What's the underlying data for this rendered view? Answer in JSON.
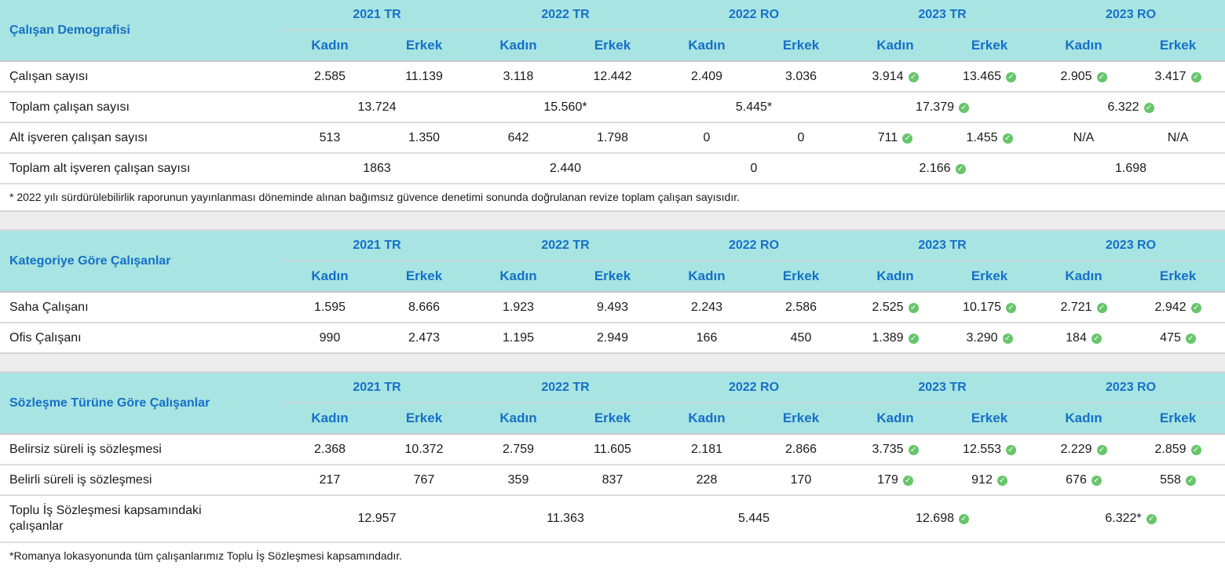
{
  "years": [
    "2021 TR",
    "2022 TR",
    "2022 RO",
    "2023 TR",
    "2023 RO"
  ],
  "genders": [
    "Kadın",
    "Erkek"
  ],
  "colors": {
    "header_bg": "#a8e4e1",
    "header_text": "#1570c8",
    "check": "#67c56a"
  },
  "check_icon": "check-circle-icon",
  "section1": {
    "title": "Çalışan Demografisi",
    "rows": [
      {
        "label": "Çalışan sayısı",
        "cells": [
          {
            "v": "2.585"
          },
          {
            "v": "11.139"
          },
          {
            "v": "3.118"
          },
          {
            "v": "12.442"
          },
          {
            "v": "2.409"
          },
          {
            "v": "3.036"
          },
          {
            "v": "3.914",
            "check": true
          },
          {
            "v": "13.465",
            "check": true
          },
          {
            "v": "2.905",
            "check": true
          },
          {
            "v": "3.417",
            "check": true
          }
        ]
      },
      {
        "label": "Toplam çalışan sayısı",
        "cells": [
          {
            "v": "13.724",
            "span": 2
          },
          {
            "v": "15.560*",
            "span": 2
          },
          {
            "v": "5.445*",
            "span": 2
          },
          {
            "v": "17.379",
            "span": 2,
            "check": true
          },
          {
            "v": "6.322",
            "span": 2,
            "check": true
          }
        ]
      },
      {
        "label": "Alt işveren çalışan sayısı",
        "cells": [
          {
            "v": "513"
          },
          {
            "v": "1.350"
          },
          {
            "v": "642"
          },
          {
            "v": "1.798"
          },
          {
            "v": "0"
          },
          {
            "v": "0"
          },
          {
            "v": "711",
            "check": true
          },
          {
            "v": "1.455",
            "check": true
          },
          {
            "v": "N/A"
          },
          {
            "v": "N/A"
          }
        ]
      },
      {
        "label": "Toplam alt işveren çalışan sayısı",
        "cells": [
          {
            "v": "1863",
            "span": 2
          },
          {
            "v": "2.440",
            "span": 2
          },
          {
            "v": "0",
            "span": 2
          },
          {
            "v": "2.166",
            "span": 2,
            "check": true
          },
          {
            "v": "1.698",
            "span": 2
          }
        ]
      }
    ],
    "note": "* 2022 yılı sürdürülebilirlik raporunun yayınlanması döneminde alınan bağımsız güvence denetimi sonunda doğrulanan revize toplam çalışan sayısıdır."
  },
  "section2": {
    "title": "Kategoriye Göre Çalışanlar",
    "rows": [
      {
        "label": "Saha Çalışanı",
        "cells": [
          {
            "v": "1.595"
          },
          {
            "v": "8.666"
          },
          {
            "v": "1.923"
          },
          {
            "v": "9.493"
          },
          {
            "v": "2.243"
          },
          {
            "v": "2.586"
          },
          {
            "v": "2.525",
            "check": true
          },
          {
            "v": "10.175",
            "check": true
          },
          {
            "v": "2.721",
            "check": true
          },
          {
            "v": "2.942",
            "check": true
          }
        ]
      },
      {
        "label": "Ofis Çalışanı",
        "cells": [
          {
            "v": "990"
          },
          {
            "v": "2.473"
          },
          {
            "v": "1.195"
          },
          {
            "v": "2.949"
          },
          {
            "v": "166"
          },
          {
            "v": "450"
          },
          {
            "v": "1.389",
            "check": true
          },
          {
            "v": "3.290",
            "check": true
          },
          {
            "v": "184",
            "check": true
          },
          {
            "v": "475",
            "check": true
          }
        ]
      }
    ]
  },
  "section3": {
    "title": "Sözleşme Türüne Göre Çalışanlar",
    "rows": [
      {
        "label": "Belirsiz süreli iş sözleşmesi",
        "cells": [
          {
            "v": "2.368"
          },
          {
            "v": "10.372"
          },
          {
            "v": "2.759"
          },
          {
            "v": "11.605"
          },
          {
            "v": "2.181"
          },
          {
            "v": "2.866"
          },
          {
            "v": "3.735",
            "check": true
          },
          {
            "v": "12.553",
            "check": true
          },
          {
            "v": "2.229",
            "check": true
          },
          {
            "v": "2.859",
            "check": true
          }
        ]
      },
      {
        "label": "Belirli süreli iş sözleşmesi",
        "cells": [
          {
            "v": "217"
          },
          {
            "v": "767"
          },
          {
            "v": "359"
          },
          {
            "v": "837"
          },
          {
            "v": "228"
          },
          {
            "v": "170"
          },
          {
            "v": "179",
            "check": true
          },
          {
            "v": "912",
            "check": true
          },
          {
            "v": "676",
            "check": true
          },
          {
            "v": "558",
            "check": true
          }
        ]
      },
      {
        "label": "Toplu İş Sözleşmesi kapsamındaki çalışanlar",
        "tall": true,
        "cells": [
          {
            "v": "12.957",
            "span": 2
          },
          {
            "v": "11.363",
            "span": 2
          },
          {
            "v": "5.445",
            "span": 2
          },
          {
            "v": "12.698",
            "span": 2,
            "check": true
          },
          {
            "v": "6.322*",
            "span": 2,
            "check": true
          }
        ]
      }
    ],
    "note": "*Romanya lokasyonunda tüm çalışanlarımız Toplu İş Sözleşmesi kapsamındadır."
  }
}
